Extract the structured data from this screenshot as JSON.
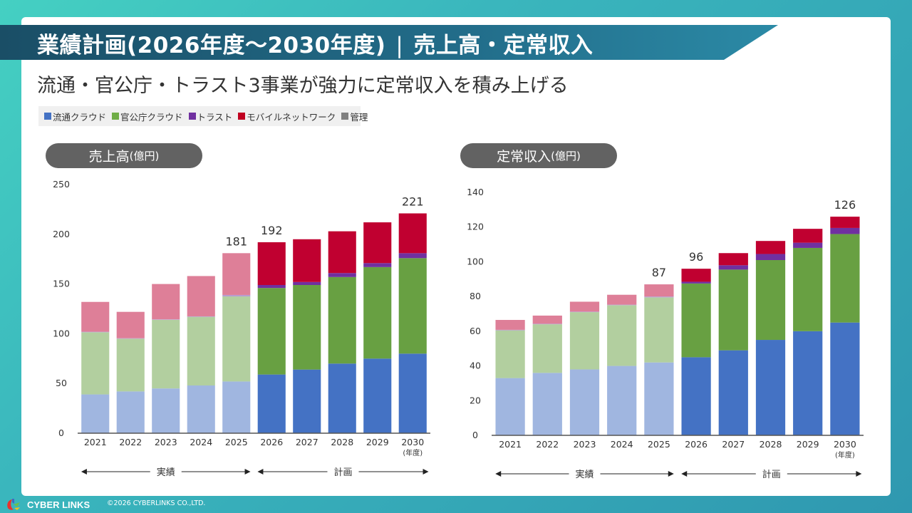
{
  "header": {
    "title_main": "業績計画(2026年度～2030年度)",
    "title_sep": "|",
    "title_sub": "売上高・定常収入",
    "subtitle": "流通・官公庁・トラスト3事業が強力に定常収入を積み上げる"
  },
  "legend": [
    {
      "label": "流通クラウド",
      "color": "#4472c4"
    },
    {
      "label": "官公庁クラウド",
      "color": "#70ad47"
    },
    {
      "label": "トラスト",
      "color": "#7030a0"
    },
    {
      "label": "モバイルネットワーク",
      "color": "#c00000"
    },
    {
      "label": "管理",
      "color": "#808080"
    }
  ],
  "panels": {
    "left_title": "売上高",
    "left_unit": "(億円)",
    "right_title": "定常収入",
    "right_unit": "(億円)"
  },
  "period_labels": {
    "actual": "実績",
    "plan": "計画",
    "year_unit": "(年度)"
  },
  "footer": {
    "brand": "CYBER LINKS",
    "copyright": "©2026 CYBERLINKS CO.,LTD."
  },
  "chart_data": [
    {
      "type": "bar",
      "stacked": true,
      "title": "売上高(億円)",
      "xlabel": "(年度)",
      "ylabel": "",
      "ylim": [
        0,
        250
      ],
      "yticks": [
        0,
        50,
        100,
        150,
        200,
        250
      ],
      "categories": [
        "2021",
        "2022",
        "2023",
        "2024",
        "2025",
        "2026",
        "2027",
        "2028",
        "2029",
        "2030"
      ],
      "actual_count": 5,
      "series": [
        {
          "name": "流通クラウド",
          "values": [
            39,
            42,
            45,
            48,
            52,
            59,
            64,
            70,
            75,
            80
          ]
        },
        {
          "name": "官公庁クラウド",
          "values": [
            62.5,
            53,
            69,
            69,
            85.5,
            87,
            85,
            87,
            92,
            96
          ]
        },
        {
          "name": "トラスト",
          "values": [
            0.5,
            0.5,
            0.5,
            0.5,
            1.5,
            3,
            3,
            4,
            4,
            5
          ]
        },
        {
          "name": "モバイルネットワーク",
          "values": [
            30,
            26.5,
            35.5,
            40.5,
            42,
            43,
            43,
            42,
            41,
            40
          ]
        },
        {
          "name": "管理",
          "values": [
            0,
            0,
            0,
            0,
            0,
            0,
            0,
            0,
            0,
            0
          ]
        }
      ],
      "total_labels": {
        "2025": "181",
        "2026": "192",
        "2030": "221"
      }
    },
    {
      "type": "bar",
      "stacked": true,
      "title": "定常収入(億円)",
      "xlabel": "(年度)",
      "ylabel": "",
      "ylim": [
        0,
        140
      ],
      "yticks": [
        0,
        20,
        40,
        60,
        80,
        100,
        120,
        140
      ],
      "categories": [
        "2021",
        "2022",
        "2023",
        "2024",
        "2025",
        "2026",
        "2027",
        "2028",
        "2029",
        "2030"
      ],
      "actual_count": 5,
      "series": [
        {
          "name": "流通クラウド",
          "values": [
            33,
            36,
            38,
            40,
            42,
            45,
            49,
            55,
            60,
            65
          ]
        },
        {
          "name": "官公庁クラウド",
          "values": [
            27.5,
            28,
            33,
            35,
            37.5,
            42.5,
            46.5,
            46,
            48,
            51
          ]
        },
        {
          "name": "トラスト",
          "values": [
            0.3,
            0.3,
            0.3,
            0.3,
            0.5,
            1,
            2.5,
            3.5,
            3,
            3.5
          ]
        },
        {
          "name": "モバイルネットワーク",
          "values": [
            5.7,
            4.7,
            5.7,
            5.7,
            7,
            7.5,
            7,
            7.5,
            8,
            6.5
          ]
        },
        {
          "name": "管理",
          "values": [
            0,
            0,
            0,
            0,
            0,
            0,
            0,
            0,
            0,
            0
          ]
        }
      ],
      "total_labels": {
        "2025": "87",
        "2026": "96",
        "2030": "126"
      }
    }
  ]
}
